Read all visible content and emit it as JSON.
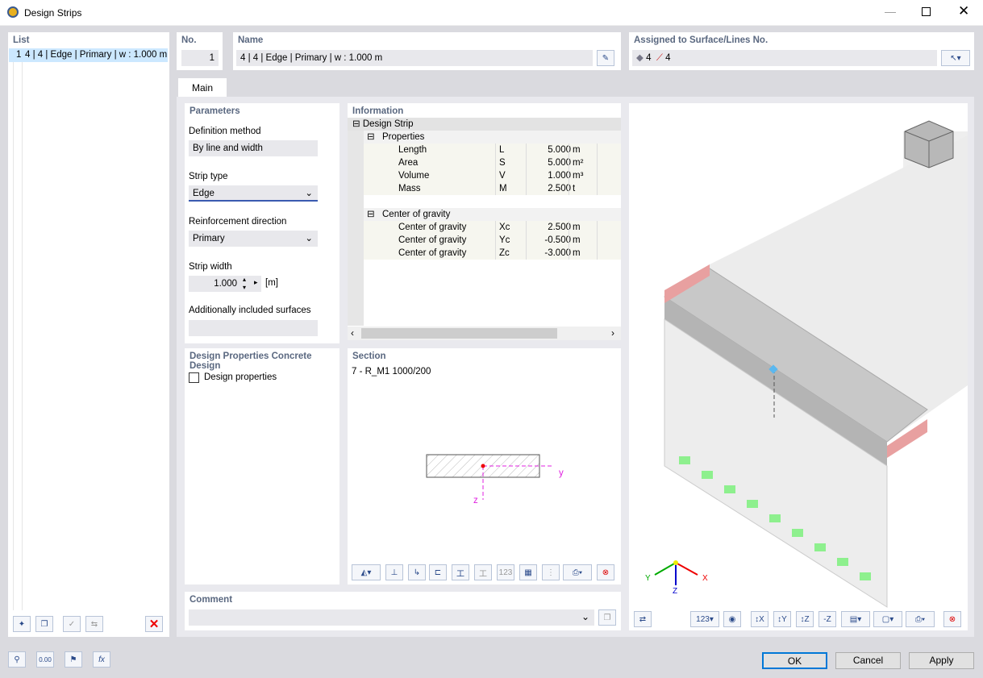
{
  "window": {
    "title": "Design Strips"
  },
  "list": {
    "header": "List",
    "items": [
      {
        "no": "1",
        "label": "4 | 4 | Edge | Primary | w : 1.000 m"
      }
    ]
  },
  "no": {
    "header": "No.",
    "value": "1"
  },
  "name": {
    "header": "Name",
    "value": "4 | 4 | Edge | Primary | w : 1.000 m"
  },
  "assigned": {
    "header": "Assigned to Surface/Lines No.",
    "surfaces": "4",
    "lines": "4"
  },
  "tabs": [
    {
      "label": "Main"
    }
  ],
  "parameters": {
    "header": "Parameters",
    "definition_method_label": "Definition method",
    "definition_method": "By line and width",
    "strip_type_label": "Strip type",
    "strip_type": "Edge",
    "reinforcement_direction_label": "Reinforcement direction",
    "reinforcement_direction": "Primary",
    "strip_width_label": "Strip width",
    "strip_width": "1.000",
    "strip_width_unit": "[m]",
    "additional_surfaces_label": "Additionally included surfaces",
    "additional_surfaces": ""
  },
  "design_properties": {
    "header": "Design Properties",
    "header2": "Concrete Design",
    "checkbox_label": "Design properties",
    "checked": false
  },
  "information": {
    "header": "Information",
    "root": "Design Strip",
    "groups": [
      {
        "label": "Properties",
        "rows": [
          {
            "name": "Length",
            "symbol": "L",
            "value": "5.000",
            "unit": "m"
          },
          {
            "name": "Area",
            "symbol": "S",
            "value": "5.000",
            "unit": "m²"
          },
          {
            "name": "Volume",
            "symbol": "V",
            "value": "1.000",
            "unit": "m³"
          },
          {
            "name": "Mass",
            "symbol": "M",
            "value": "2.500",
            "unit": "t"
          }
        ]
      },
      {
        "label": "Center of gravity",
        "rows": [
          {
            "name": "Center of gravity",
            "symbol": "Xc",
            "value": "2.500",
            "unit": "m"
          },
          {
            "name": "Center of gravity",
            "symbol": "Yc",
            "value": "-0.500",
            "unit": "m"
          },
          {
            "name": "Center of gravity",
            "symbol": "Zc",
            "value": "-3.000",
            "unit": "m"
          }
        ]
      }
    ]
  },
  "section": {
    "header": "Section",
    "name": "7 - R_M1 1000/200",
    "axis_y": "y",
    "axis_z": "z"
  },
  "comment": {
    "header": "Comment",
    "value": ""
  },
  "view": {
    "axis_x": "X",
    "axis_y": "Y",
    "axis_z": "Z"
  },
  "buttons": {
    "ok": "OK",
    "cancel": "Cancel",
    "apply": "Apply"
  },
  "colors": {
    "accent": "#0078d7",
    "header": "#5a6880",
    "selection": "#cce8ff"
  }
}
